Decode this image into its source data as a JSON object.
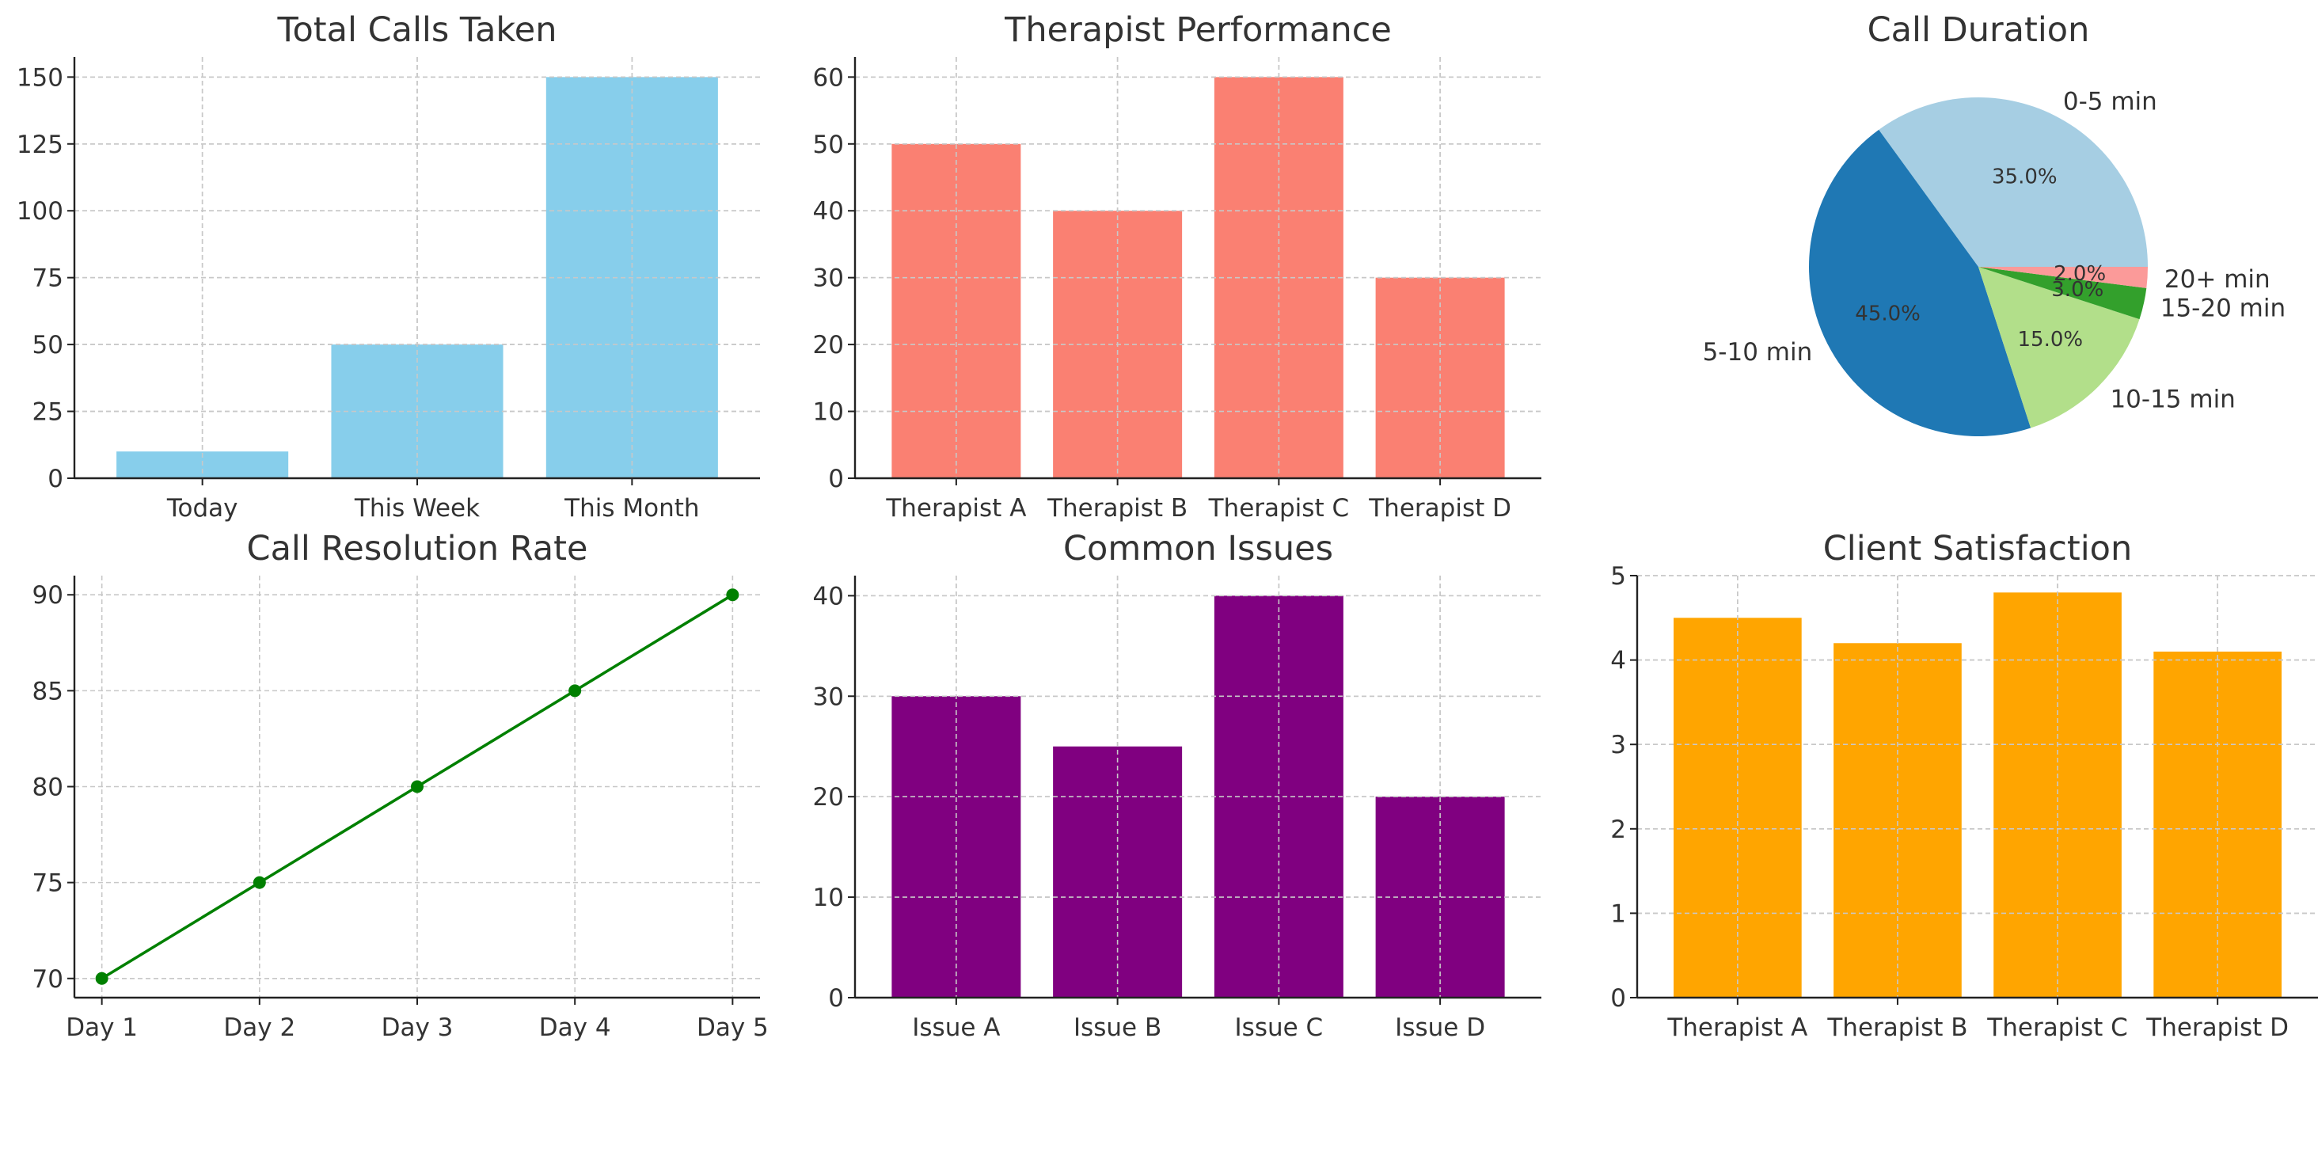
{
  "chart_data": [
    {
      "id": "total-calls",
      "type": "bar",
      "title": "Total Calls Taken",
      "categories": [
        "Today",
        "This Week",
        "This Month"
      ],
      "values": [
        10,
        50,
        150
      ],
      "color": "#87ceeb",
      "ylim": [
        0,
        157.5
      ],
      "yticks": [
        0,
        25,
        50,
        75,
        100,
        125,
        150
      ],
      "grid": true
    },
    {
      "id": "therapist-performance",
      "type": "bar",
      "title": "Therapist Performance",
      "categories": [
        "Therapist A",
        "Therapist B",
        "Therapist C",
        "Therapist D"
      ],
      "values": [
        50,
        40,
        60,
        30
      ],
      "color": "#fa8072",
      "ylim": [
        0,
        63
      ],
      "yticks": [
        0,
        10,
        20,
        30,
        40,
        50,
        60
      ],
      "grid": true
    },
    {
      "id": "call-duration",
      "type": "pie",
      "title": "Call Duration",
      "labels": [
        "0-5 min",
        "5-10 min",
        "10-15 min",
        "15-20 min",
        "20+ min"
      ],
      "values": [
        35,
        45,
        15,
        3,
        2
      ],
      "pct_labels": [
        "35.0%",
        "45.0%",
        "15.0%",
        "3.0%",
        "2.0%"
      ],
      "colors": [
        "#a6cee3",
        "#1f78b4",
        "#b2df8a",
        "#33a02c",
        "#fb9a99"
      ]
    },
    {
      "id": "call-resolution-rate",
      "type": "line",
      "title": "Call Resolution Rate",
      "x": [
        "Day 1",
        "Day 2",
        "Day 3",
        "Day 4",
        "Day 5"
      ],
      "values": [
        70,
        75,
        80,
        85,
        90
      ],
      "color": "#008000",
      "ylim": [
        69,
        91
      ],
      "yticks": [
        70,
        75,
        80,
        85,
        90
      ],
      "grid": true
    },
    {
      "id": "common-issues",
      "type": "bar",
      "title": "Common Issues",
      "categories": [
        "Issue A",
        "Issue B",
        "Issue C",
        "Issue D"
      ],
      "values": [
        30,
        25,
        40,
        20
      ],
      "color": "#800080",
      "ylim": [
        0,
        42
      ],
      "yticks": [
        0,
        10,
        20,
        30,
        40
      ],
      "grid": true
    },
    {
      "id": "client-satisfaction",
      "type": "bar",
      "title": "Client Satisfaction",
      "categories": [
        "Therapist A",
        "Therapist B",
        "Therapist C",
        "Therapist D"
      ],
      "values": [
        4.5,
        4.2,
        4.8,
        4.1
      ],
      "color": "#ffa500",
      "ylim": [
        0,
        5
      ],
      "yticks": [
        0,
        1,
        2,
        3,
        4,
        5
      ],
      "grid": true
    }
  ]
}
